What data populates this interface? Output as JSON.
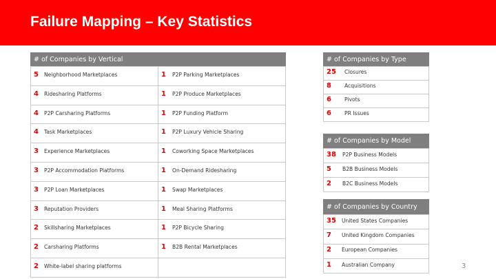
{
  "header": {
    "title": "Failure Mapping – Key Statistics"
  },
  "vertical_table": {
    "title": "# of Companies by Vertical",
    "left": [
      {
        "count": 5,
        "label": "Neighborhood Marketplaces"
      },
      {
        "count": 4,
        "label": "Ridesharing Platforms"
      },
      {
        "count": 4,
        "label": "P2P Carsharing Platforms"
      },
      {
        "count": 4,
        "label": "Task Marketplaces"
      },
      {
        "count": 3,
        "label": "Experience Marketplaces"
      },
      {
        "count": 3,
        "label": "P2P Accommodation Platforms"
      },
      {
        "count": 3,
        "label": "P2P Loan Marketplaces"
      },
      {
        "count": 3,
        "label": "Reputation Providers"
      },
      {
        "count": 2,
        "label": "Skillsharing Marketplaces"
      },
      {
        "count": 2,
        "label": "Carsharing Platforms"
      },
      {
        "count": 2,
        "label": "White-label sharing platforms"
      }
    ],
    "right": [
      {
        "count": 1,
        "label": "P2P Parking Marketplaces"
      },
      {
        "count": 1,
        "label": "P2P Produce Marketplaces"
      },
      {
        "count": 1,
        "label": "P2P Funding Platform"
      },
      {
        "count": 1,
        "label": "P2P Luxury Vehicle Sharing"
      },
      {
        "count": 1,
        "label": "Coworking Space Marketplaces"
      },
      {
        "count": 1,
        "label": "On-Demand Ridesharing"
      },
      {
        "count": 1,
        "label": "Swap Marketplaces"
      },
      {
        "count": 1,
        "label": "Meal Sharing Platforms"
      },
      {
        "count": 1,
        "label": "P2P Bicycle Sharing"
      },
      {
        "count": 1,
        "label": "B2B Rental Marketplaces"
      }
    ]
  },
  "type_table": {
    "title": "# of Companies by Type",
    "rows": [
      {
        "count": 25,
        "label": "Closures"
      },
      {
        "count": 8,
        "label": "Acquisitions"
      },
      {
        "count": 6,
        "label": "Pivots"
      },
      {
        "count": 6,
        "label": "PR Issues"
      }
    ]
  },
  "model_table": {
    "title": "# of Companies by Model",
    "rows": [
      {
        "count": 38,
        "label": "P2P Business Models"
      },
      {
        "count": 5,
        "label": "B2B Business Models"
      },
      {
        "count": 2,
        "label": "B2C Business Models"
      }
    ]
  },
  "country_table": {
    "title": "# of Companies by Country",
    "rows": [
      {
        "count": 35,
        "label": "United States Companies"
      },
      {
        "count": 7,
        "label": "United Kingdom Companies"
      },
      {
        "count": 2,
        "label": "European Companies"
      },
      {
        "count": 1,
        "label": "Australian Company"
      }
    ]
  },
  "page_number": 3
}
